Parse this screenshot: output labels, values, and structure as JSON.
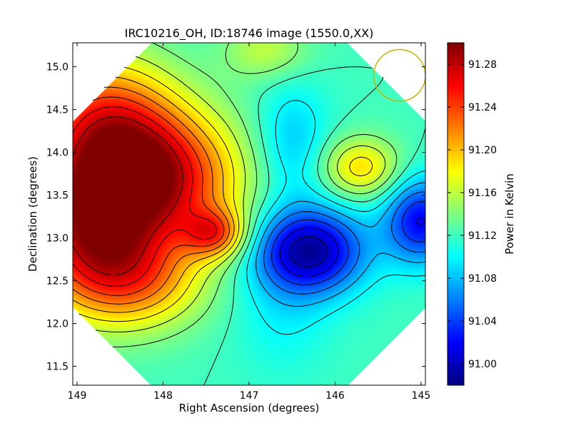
{
  "chart_data": {
    "type": "heatmap",
    "title": "IRC10216_OH, ID:18746 image (1550.0,XX)",
    "xlabel": "Right Ascension (degrees)",
    "ylabel": "Declination (degrees)",
    "xlim": [
      149.05,
      144.95
    ],
    "ylim": [
      11.28,
      15.28
    ],
    "xticks": [
      149,
      148,
      147,
      146,
      145
    ],
    "yticks": [
      11.5,
      12.0,
      12.5,
      13.0,
      13.5,
      14.0,
      14.5,
      15.0
    ],
    "xtick_labels": [
      "149",
      "148",
      "147",
      "146",
      "145"
    ],
    "ytick_labels": [
      "11.5",
      "12.0",
      "12.5",
      "13.0",
      "13.5",
      "14.0",
      "14.5",
      "15.0"
    ],
    "colorbar": {
      "label": "Power in Kelvin",
      "vmin": 90.98,
      "vmax": 91.3,
      "ticks": [
        91.0,
        91.04,
        91.08,
        91.12,
        91.16,
        91.2,
        91.24,
        91.28
      ],
      "tick_labels": [
        "91.00",
        "91.04",
        "91.08",
        "91.12",
        "91.16",
        "91.20",
        "91.24",
        "91.28"
      ],
      "colormap": "jet"
    },
    "background": 91.12,
    "features": [
      {
        "kind": "peak",
        "ra": 148.15,
        "dec": 13.68,
        "value": 91.28,
        "sigma_ra": 0.7,
        "sigma_dec": 0.55
      },
      {
        "kind": "peak",
        "ra": 148.9,
        "dec": 13.05,
        "value": 91.24,
        "sigma_ra": 0.55,
        "sigma_dec": 0.6
      },
      {
        "kind": "peak",
        "ra": 148.7,
        "dec": 14.4,
        "value": 91.22,
        "sigma_ra": 0.6,
        "sigma_dec": 0.55
      },
      {
        "kind": "peak",
        "ra": 147.4,
        "dec": 13.05,
        "value": 91.21,
        "sigma_ra": 0.25,
        "sigma_dec": 0.2
      },
      {
        "kind": "peak",
        "ra": 148.3,
        "dec": 12.5,
        "value": 91.2,
        "sigma_ra": 0.55,
        "sigma_dec": 0.4
      },
      {
        "kind": "peak",
        "ra": 145.7,
        "dec": 13.82,
        "value": 91.19,
        "sigma_ra": 0.32,
        "sigma_dec": 0.25
      },
      {
        "kind": "peak",
        "ra": 146.8,
        "dec": 15.2,
        "value": 91.16,
        "sigma_ra": 0.35,
        "sigma_dec": 0.25
      },
      {
        "kind": "trough",
        "ra": 146.3,
        "dec": 12.85,
        "value": 90.99,
        "sigma_ra": 0.45,
        "sigma_dec": 0.35
      },
      {
        "kind": "trough",
        "ra": 145.0,
        "dec": 13.2,
        "value": 91.02,
        "sigma_ra": 0.3,
        "sigma_dec": 0.35
      },
      {
        "kind": "trough",
        "ra": 146.5,
        "dec": 14.1,
        "value": 91.08,
        "sigma_ra": 0.3,
        "sigma_dec": 0.5
      },
      {
        "kind": "trough",
        "ra": 146.6,
        "dec": 12.1,
        "value": 91.1,
        "sigma_ra": 0.4,
        "sigma_dec": 0.5
      }
    ],
    "beam_marker": {
      "ra": 145.25,
      "dec": 14.9,
      "radius_deg": 0.3,
      "color": "#c8b400"
    },
    "grid": false,
    "legend": "none"
  }
}
